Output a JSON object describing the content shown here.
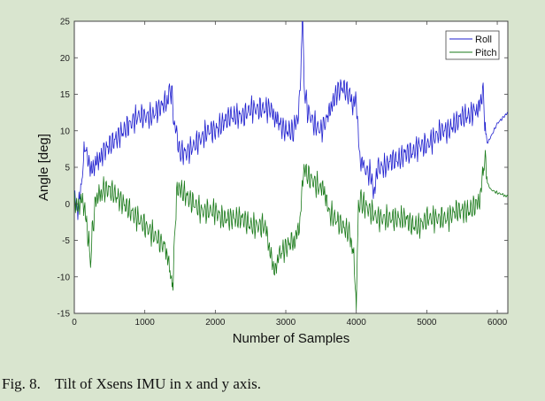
{
  "caption": {
    "number": "Fig. 8.",
    "text": "Tilt of Xsens IMU in x and y axis."
  },
  "chart_data": {
    "type": "line",
    "title": "",
    "xlabel": "Number of Samples",
    "ylabel": "Angle [deg]",
    "xlim": [
      0,
      6150
    ],
    "ylim": [
      -15,
      25
    ],
    "xticks": [
      0,
      1000,
      2000,
      3000,
      4000,
      5000,
      6000
    ],
    "xtick_labels": [
      "0",
      "1000",
      "2000",
      "3000",
      "4000",
      "5000",
      "6000"
    ],
    "yticks": [
      -15,
      -10,
      -5,
      0,
      5,
      10,
      15,
      20,
      25
    ],
    "ytick_labels": [
      "-15",
      "-10",
      "-5",
      "0",
      "5",
      "10",
      "15",
      "20",
      "25"
    ],
    "grid": false,
    "legend": "top-right",
    "colors": {
      "plot_bg": "#ffffff",
      "page_bg": "#d9e5cf",
      "axes": "#444444"
    },
    "series": [
      {
        "name": "Roll",
        "color": "#1f1fcf",
        "x": [
          0,
          50,
          100,
          130,
          160,
          200,
          250,
          300,
          350,
          400,
          500,
          600,
          700,
          800,
          900,
          1000,
          1100,
          1200,
          1300,
          1350,
          1380,
          1420,
          1500,
          1600,
          1700,
          1800,
          1900,
          2000,
          2100,
          2200,
          2300,
          2400,
          2500,
          2600,
          2700,
          2800,
          2850,
          2900,
          3000,
          3100,
          3180,
          3220,
          3240,
          3260,
          3300,
          3400,
          3500,
          3600,
          3650,
          3700,
          3800,
          3900,
          3950,
          4000,
          4050,
          4100,
          4200,
          4250,
          4300,
          4400,
          4500,
          4600,
          4700,
          4800,
          4900,
          5000,
          5100,
          5200,
          5300,
          5400,
          5500,
          5600,
          5700,
          5750,
          5800,
          5830,
          5850,
          5900,
          6000,
          6100,
          6150
        ],
        "y": [
          0,
          -1,
          3,
          6,
          8,
          6,
          4,
          5,
          6,
          7,
          8,
          9,
          10,
          11,
          12,
          12,
          12,
          13,
          14,
          16,
          15,
          11,
          7,
          7,
          8,
          9,
          10,
          10,
          11,
          12,
          12,
          12,
          13,
          13,
          13,
          13,
          12,
          11,
          10,
          10,
          12,
          20,
          25,
          16,
          13,
          11,
          10,
          12,
          14,
          15,
          16,
          15,
          14,
          15,
          6,
          5,
          4,
          2,
          5,
          5,
          6,
          6,
          7,
          7,
          8,
          8,
          9,
          10,
          10,
          11,
          12,
          12,
          13,
          14,
          16,
          10,
          8,
          9,
          11,
          12,
          12.5
        ]
      },
      {
        "name": "Pitch",
        "color": "#1a7a1a",
        "x": [
          0,
          50,
          100,
          150,
          200,
          230,
          260,
          300,
          350,
          400,
          500,
          600,
          700,
          800,
          900,
          1000,
          1100,
          1200,
          1300,
          1350,
          1380,
          1400,
          1420,
          1450,
          1500,
          1600,
          1700,
          1800,
          1900,
          2000,
          2100,
          2200,
          2300,
          2400,
          2500,
          2600,
          2700,
          2750,
          2800,
          2850,
          2900,
          3000,
          3100,
          3150,
          3200,
          3250,
          3300,
          3400,
          3500,
          3550,
          3600,
          3700,
          3800,
          3900,
          3950,
          3980,
          4000,
          4030,
          4060,
          4100,
          4200,
          4300,
          4400,
          4500,
          4600,
          4700,
          4800,
          4900,
          5000,
          5100,
          5200,
          5300,
          5400,
          5500,
          5600,
          5700,
          5750,
          5800,
          5830,
          5860,
          5900,
          6000,
          6100,
          6150
        ],
        "y": [
          0,
          -1,
          1,
          0,
          -5,
          -8,
          -3,
          0,
          1,
          2,
          2,
          1,
          0,
          -1,
          -2,
          -3,
          -4,
          -5,
          -6,
          -8,
          -11,
          -13,
          -5,
          1,
          2,
          1,
          0,
          -1,
          -1,
          -1,
          -2,
          -2,
          -2,
          -2,
          -3,
          -3,
          -3,
          -5,
          -7,
          -9,
          -7,
          -6,
          -5,
          -4,
          -3,
          4,
          4,
          3,
          2,
          1,
          -1,
          -2,
          -3,
          -4,
          -6,
          -10,
          -13,
          -1,
          1,
          0,
          -1,
          -2,
          -2,
          -2,
          -2,
          -2,
          -3,
          -3,
          -2,
          -2,
          -2,
          -2,
          -1,
          -1,
          -1,
          0,
          1,
          5,
          6,
          3,
          2,
          1.5,
          1.2,
          1
        ]
      }
    ]
  }
}
